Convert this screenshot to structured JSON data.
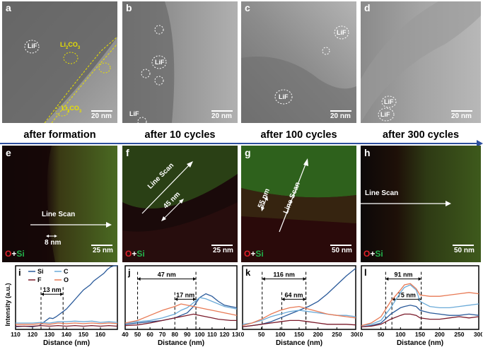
{
  "tem_panels": [
    {
      "letter": "a",
      "scale": "20 nm",
      "caption": "after formation",
      "labels": [
        {
          "text": "LiF",
          "color": "#ffffff"
        },
        {
          "text": "Li2CO3",
          "color": "#e8e000"
        },
        {
          "text": "Li2CO3",
          "color": "#e8e000"
        }
      ]
    },
    {
      "letter": "b",
      "scale": "20 nm",
      "caption": "after 10 cycles",
      "labels": [
        {
          "text": "LiF",
          "color": "#ffffff"
        },
        {
          "text": "LiF",
          "color": "#ffffff"
        }
      ]
    },
    {
      "letter": "c",
      "scale": "20 nm",
      "caption": "after 100 cycles",
      "labels": [
        {
          "text": "LiF",
          "color": "#ffffff"
        },
        {
          "text": "LiF",
          "color": "#ffffff"
        }
      ]
    },
    {
      "letter": "d",
      "scale": "20 nm",
      "caption": "after 300 cycles",
      "labels": [
        {
          "text": "LiF",
          "color": "#ffffff"
        },
        {
          "text": "LiF",
          "color": "#ffffff"
        }
      ]
    }
  ],
  "eds_panels": [
    {
      "letter": "e",
      "scale": "25 nm",
      "line_scan": "Line Scan",
      "width_note": "8 nm"
    },
    {
      "letter": "f",
      "scale": "25 nm",
      "line_scan": "Line Scan",
      "width_note": "45 nm"
    },
    {
      "letter": "g",
      "scale": "50 nm",
      "line_scan": "Line Scan",
      "width_note": "55 nm"
    },
    {
      "letter": "h",
      "scale": "50 nm",
      "line_scan": "Line Scan",
      "width_note": ""
    }
  ],
  "eds_legend": {
    "o": "O",
    "plus": "+",
    "si": "Si",
    "o_color": "#e0202a",
    "si_color": "#22b04a"
  },
  "chart_data": [
    {
      "type": "line",
      "panel": "i",
      "xlabel": "Distance (nm)",
      "ylabel": "Intensity (a.u.)",
      "xlim": [
        110,
        170
      ],
      "xticks": [
        110,
        120,
        130,
        140,
        150,
        160
      ],
      "legend": [
        "Si",
        "C",
        "F",
        "O"
      ],
      "annotation": "13 nm",
      "bracket": [
        125,
        138
      ],
      "series": [
        {
          "name": "Si",
          "color": "#2a5a9a",
          "x": [
            110,
            115,
            120,
            124,
            126,
            128,
            130,
            132,
            134,
            136,
            138,
            140,
            142,
            144,
            146,
            148,
            150,
            152,
            154,
            156,
            158,
            160,
            162,
            164,
            166,
            168,
            170
          ],
          "y": [
            4,
            5,
            4,
            6,
            10,
            14,
            18,
            17,
            20,
            24,
            28,
            32,
            38,
            44,
            50,
            56,
            62,
            66,
            70,
            76,
            80,
            84,
            88,
            94,
            98,
            100,
            100
          ]
        },
        {
          "name": "C",
          "color": "#6aaad8",
          "x": [
            110,
            120,
            125,
            130,
            135,
            140,
            145,
            150,
            155,
            160,
            165,
            170
          ],
          "y": [
            10,
            10,
            11,
            10,
            12,
            12,
            13,
            12,
            13,
            11,
            12,
            11
          ]
        },
        {
          "name": "F",
          "color": "#7a1a2a",
          "x": [
            110,
            120,
            125,
            130,
            135,
            140,
            145,
            150,
            155,
            160,
            165,
            170
          ],
          "y": [
            5,
            5,
            6,
            5,
            6,
            5,
            6,
            5,
            6,
            5,
            6,
            5
          ]
        },
        {
          "name": "O",
          "color": "#e87a55",
          "x": [
            110,
            120,
            125,
            130,
            135,
            140,
            145,
            150,
            155,
            160,
            165,
            170
          ],
          "y": [
            8,
            8,
            9,
            8,
            10,
            9,
            10,
            9,
            10,
            9,
            10,
            9
          ]
        }
      ]
    },
    {
      "type": "line",
      "panel": "j",
      "xlabel": "Distance (nm)",
      "ylabel": "",
      "xlim": [
        40,
        130
      ],
      "xticks": [
        40,
        50,
        60,
        70,
        80,
        90,
        100,
        110,
        120,
        130
      ],
      "annotation_outer": "47 nm",
      "bracket_outer": [
        50,
        97
      ],
      "annotation_inner": "17 nm",
      "bracket_inner": [
        80,
        97
      ],
      "series": [
        {
          "name": "Si",
          "color": "#2a5a9a",
          "x": [
            40,
            50,
            60,
            70,
            80,
            85,
            90,
            95,
            100,
            105,
            110,
            115,
            120,
            125,
            130
          ],
          "y": [
            8,
            10,
            12,
            14,
            18,
            22,
            26,
            36,
            50,
            56,
            52,
            44,
            38,
            36,
            34
          ]
        },
        {
          "name": "C",
          "color": "#6aaad8",
          "x": [
            40,
            50,
            60,
            70,
            80,
            85,
            90,
            95,
            100,
            105,
            110,
            115,
            120,
            125,
            130
          ],
          "y": [
            10,
            12,
            14,
            18,
            24,
            30,
            34,
            42,
            50,
            48,
            44,
            40,
            36,
            34,
            32
          ]
        },
        {
          "name": "F",
          "color": "#7a1a2a",
          "x": [
            40,
            50,
            60,
            70,
            80,
            85,
            90,
            95,
            100,
            105,
            110,
            115,
            120,
            125,
            130
          ],
          "y": [
            6,
            7,
            10,
            14,
            18,
            20,
            22,
            24,
            22,
            20,
            18,
            16,
            15,
            14,
            14
          ]
        },
        {
          "name": "O",
          "color": "#e87a55",
          "x": [
            40,
            50,
            60,
            70,
            80,
            85,
            90,
            95,
            100,
            105,
            110,
            115,
            120,
            125,
            130
          ],
          "y": [
            10,
            14,
            22,
            30,
            36,
            40,
            38,
            36,
            34,
            32,
            30,
            28,
            26,
            24,
            22
          ]
        }
      ]
    },
    {
      "type": "line",
      "panel": "k",
      "xlabel": "Distance (nm)",
      "ylabel": "",
      "xlim": [
        0,
        300
      ],
      "xticks": [
        0,
        50,
        100,
        150,
        200,
        250,
        300
      ],
      "annotation_outer": "116 nm",
      "bracket_outer": [
        52,
        168
      ],
      "annotation_inner": "64 nm",
      "bracket_inner": [
        104,
        168
      ],
      "series": [
        {
          "name": "Si",
          "color": "#2a5a9a",
          "x": [
            0,
            25,
            50,
            75,
            100,
            125,
            150,
            175,
            200,
            225,
            250,
            275,
            300
          ],
          "y": [
            4,
            6,
            8,
            12,
            18,
            24,
            30,
            36,
            44,
            56,
            70,
            84,
            96
          ]
        },
        {
          "name": "C",
          "color": "#6aaad8",
          "x": [
            0,
            25,
            50,
            75,
            100,
            125,
            150,
            175,
            200,
            225,
            250,
            275,
            300
          ],
          "y": [
            8,
            10,
            14,
            20,
            24,
            28,
            30,
            28,
            26,
            24,
            22,
            22,
            20
          ]
        },
        {
          "name": "F",
          "color": "#7a1a2a",
          "x": [
            0,
            25,
            50,
            75,
            100,
            125,
            150,
            175,
            200,
            225,
            250,
            275,
            300
          ],
          "y": [
            4,
            6,
            8,
            10,
            12,
            14,
            14,
            12,
            10,
            8,
            8,
            8,
            7
          ]
        },
        {
          "name": "O",
          "color": "#e87a55",
          "x": [
            0,
            25,
            50,
            75,
            100,
            125,
            150,
            175,
            200,
            225,
            250,
            275,
            300
          ],
          "y": [
            6,
            10,
            16,
            24,
            30,
            34,
            36,
            32,
            28,
            24,
            22,
            20,
            18
          ]
        }
      ]
    },
    {
      "type": "line",
      "panel": "l",
      "xlabel": "Distance (nm)",
      "ylabel": "",
      "xlim": [
        0,
        300
      ],
      "xticks": [
        0,
        50,
        100,
        150,
        200,
        250,
        300
      ],
      "annotation_outer": "91 nm",
      "bracket_outer": [
        62,
        153
      ],
      "annotation_inner": "75 nm",
      "bracket_inner": [
        78,
        153
      ],
      "series": [
        {
          "name": "Si",
          "color": "#2a5a9a",
          "x": [
            0,
            25,
            50,
            75,
            100,
            110,
            125,
            140,
            150,
            175,
            200,
            225,
            250,
            275,
            300
          ],
          "y": [
            4,
            6,
            10,
            24,
            34,
            36,
            38,
            36,
            30,
            26,
            24,
            22,
            22,
            24,
            22
          ]
        },
        {
          "name": "C",
          "color": "#6aaad8",
          "x": [
            0,
            25,
            50,
            75,
            100,
            110,
            125,
            140,
            150,
            175,
            200,
            225,
            250,
            275,
            300
          ],
          "y": [
            6,
            8,
            14,
            34,
            58,
            66,
            70,
            62,
            44,
            36,
            34,
            34,
            36,
            38,
            40
          ]
        },
        {
          "name": "F",
          "color": "#7a1a2a",
          "x": [
            0,
            25,
            50,
            75,
            100,
            110,
            125,
            140,
            150,
            175,
            200,
            225,
            250,
            275,
            300
          ],
          "y": [
            4,
            5,
            8,
            16,
            22,
            24,
            24,
            22,
            18,
            16,
            16,
            18,
            20,
            18,
            20
          ]
        },
        {
          "name": "O",
          "color": "#e87a55",
          "x": [
            0,
            25,
            50,
            75,
            100,
            110,
            125,
            140,
            150,
            175,
            200,
            225,
            250,
            275,
            300
          ],
          "y": [
            6,
            10,
            20,
            44,
            62,
            70,
            72,
            64,
            54,
            52,
            52,
            54,
            56,
            58,
            56
          ]
        }
      ]
    }
  ]
}
